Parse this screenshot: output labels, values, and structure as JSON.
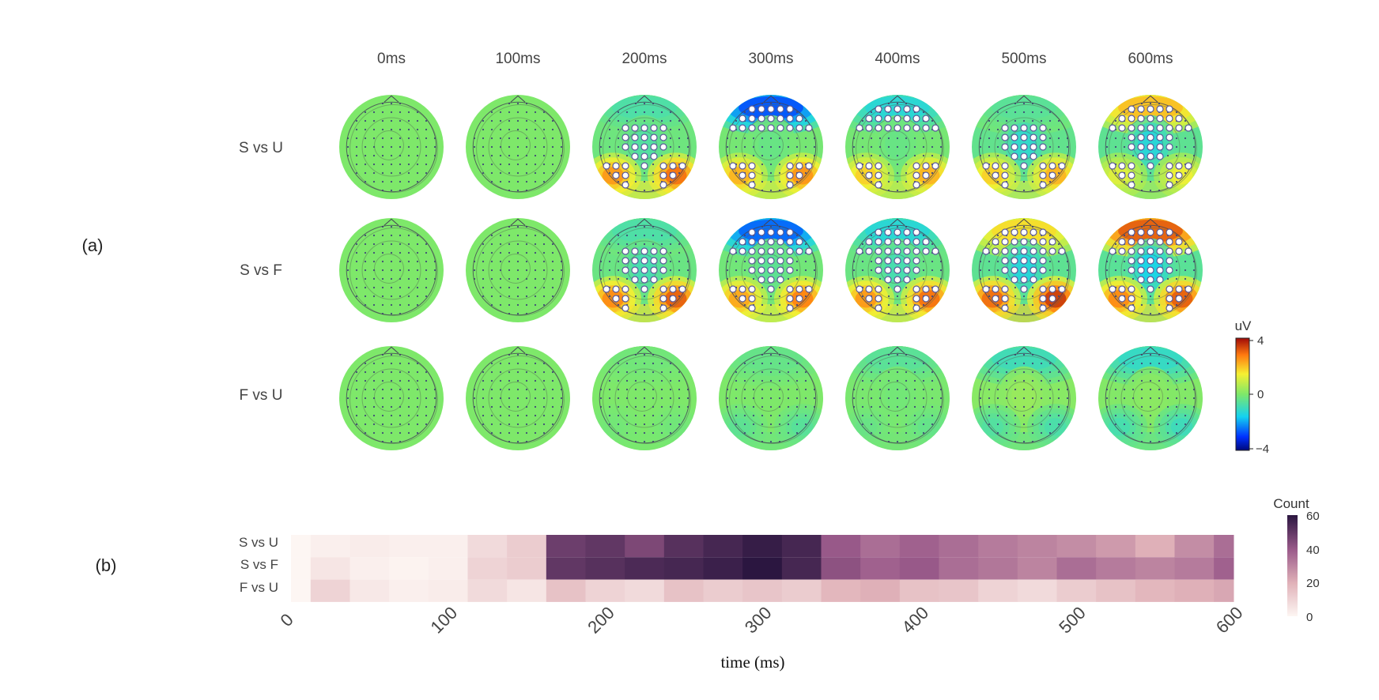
{
  "panel_a": {
    "label": "(a)",
    "columns": [
      "0ms",
      "100ms",
      "200ms",
      "300ms",
      "400ms",
      "500ms",
      "600ms"
    ],
    "rows": [
      "S vs U",
      "S vs F",
      "F vs U"
    ],
    "colorbar": {
      "title": "uV",
      "ticks": [
        "4",
        "0",
        "−4"
      ]
    },
    "colors": {
      "neg": "#0015c8",
      "mid": "#7ee86a",
      "pos": "#c21a10"
    }
  },
  "panel_b": {
    "label": "(b)",
    "rows": [
      "S vs U",
      "S vs F",
      "F vs U"
    ],
    "xticks": [
      "0",
      "100",
      "200",
      "300",
      "400",
      "500",
      "600"
    ],
    "xlabel": "time (ms)",
    "colorbar": {
      "title": "Count",
      "ticks": [
        "60",
        "40",
        "20",
        "0"
      ]
    }
  },
  "chart_data": {
    "type": "heatmap",
    "xlim": [
      0,
      600
    ],
    "clim": [
      0,
      60
    ],
    "time_ms": [
      0,
      25,
      50,
      75,
      100,
      125,
      150,
      175,
      200,
      225,
      250,
      275,
      300,
      325,
      350,
      375,
      400,
      425,
      450,
      475,
      500,
      525,
      550,
      575,
      600
    ],
    "series": [
      {
        "name": "S vs U",
        "values": [
          0,
          2,
          3,
          2,
          2,
          8,
          12,
          48,
          50,
          45,
          52,
          55,
          58,
          55,
          40,
          35,
          38,
          35,
          32,
          30,
          28,
          25,
          20,
          28,
          35
        ]
      },
      {
        "name": "S vs F",
        "values": [
          0,
          5,
          2,
          1,
          2,
          10,
          12,
          50,
          52,
          54,
          55,
          57,
          60,
          55,
          42,
          38,
          40,
          35,
          33,
          30,
          35,
          32,
          30,
          32,
          38
        ]
      },
      {
        "name": "F vs U",
        "values": [
          0,
          10,
          4,
          2,
          3,
          8,
          5,
          15,
          10,
          8,
          15,
          12,
          14,
          12,
          18,
          20,
          15,
          14,
          10,
          8,
          12,
          15,
          18,
          20,
          22
        ]
      }
    ]
  }
}
